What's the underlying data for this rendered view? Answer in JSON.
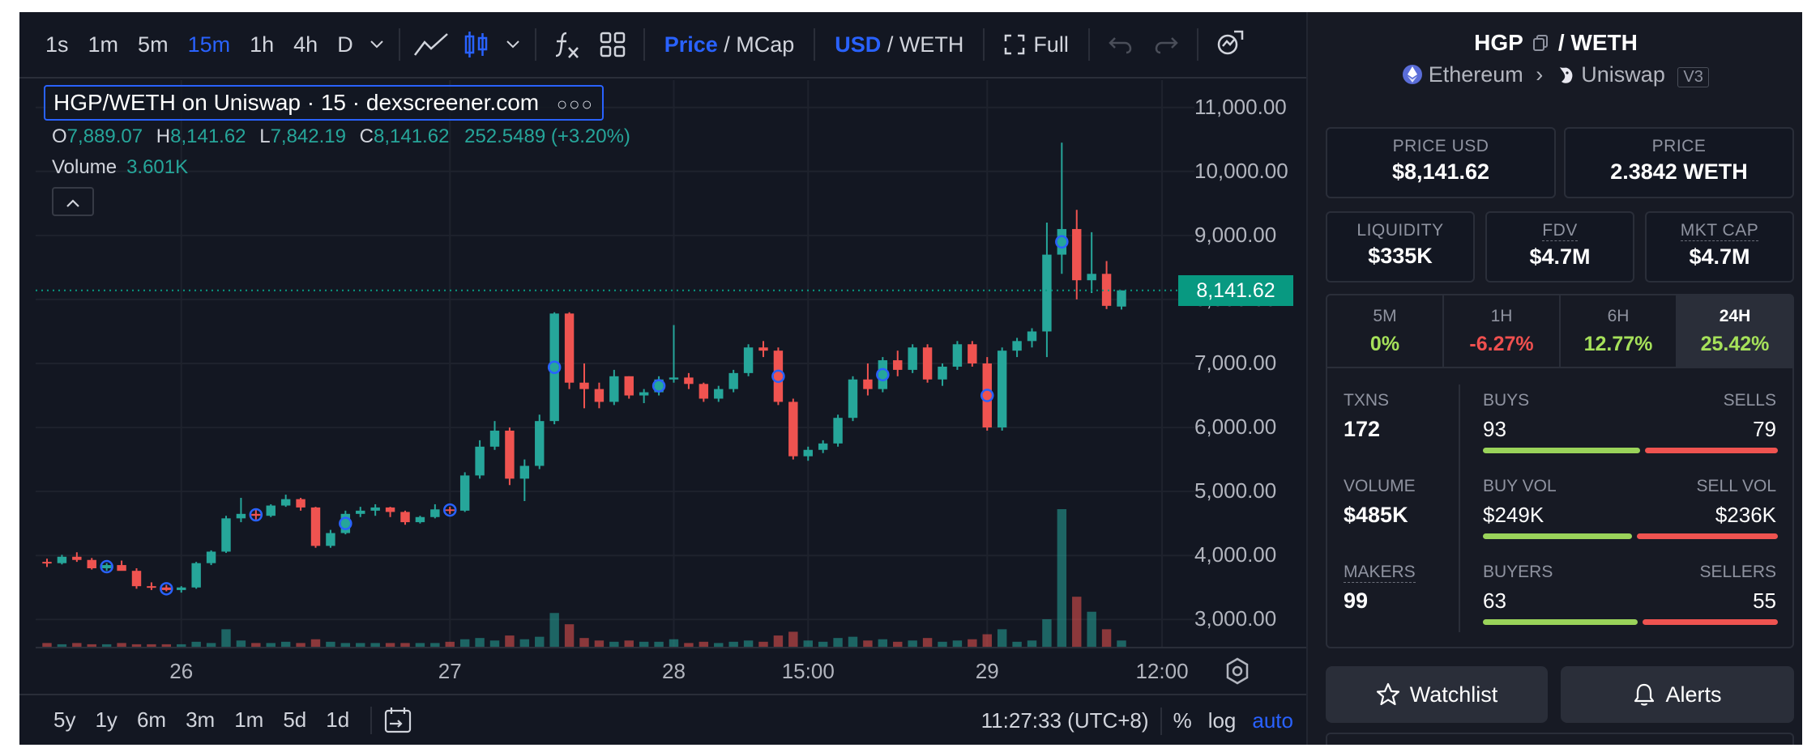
{
  "toolbar": {
    "intervals": [
      "1s",
      "1m",
      "5m",
      "15m",
      "1h",
      "4h",
      "D"
    ],
    "active_interval": "15m",
    "price_toggle": {
      "selected": "Price",
      "other": "MCap",
      "sep": " / "
    },
    "currency_toggle": {
      "selected": "USD",
      "other": "WETH",
      "sep": " / "
    },
    "fullscreen_label": "Full"
  },
  "chart_data": {
    "type": "candlestick",
    "title": "HGP/WETH on Uniswap · 15 · dexscreener.com",
    "ohlc": {
      "o_label": "O",
      "o": "7,889.07",
      "h_label": "H",
      "h": "8,141.62",
      "l_label": "L",
      "l": "7,842.19",
      "c_label": "C",
      "c": "8,141.62",
      "change": "252.5489 (+3.20%)"
    },
    "volume_label": "Volume",
    "volume_value": "3.601K",
    "y_ticks": [
      "11,000.00",
      "10,000.00",
      "9,000.00",
      "8,000.00",
      "7,000.00",
      "6,000.00",
      "5,000.00",
      "4,000.00",
      "3,000.00"
    ],
    "y_tick_values": [
      11000,
      10000,
      9000,
      8000,
      7000,
      6000,
      5000,
      4000,
      3000
    ],
    "ylim": [
      2700,
      11300
    ],
    "current_price": 8141.62,
    "current_price_label": "8,141.62",
    "x_ticks": [
      "26",
      "27",
      "28",
      "15:00",
      "29",
      "12:00"
    ],
    "candles": [
      [
        3900,
        3950,
        3820,
        3880
      ],
      [
        3880,
        4010,
        3860,
        3980
      ],
      [
        3980,
        4050,
        3900,
        3930
      ],
      [
        3930,
        3960,
        3780,
        3800
      ],
      [
        3800,
        3880,
        3760,
        3850
      ],
      [
        3850,
        3920,
        3800,
        3760
      ],
      [
        3760,
        3800,
        3480,
        3520
      ],
      [
        3520,
        3580,
        3460,
        3500
      ],
      [
        3500,
        3540,
        3440,
        3460
      ],
      [
        3460,
        3520,
        3420,
        3500
      ],
      [
        3500,
        3900,
        3480,
        3880
      ],
      [
        3880,
        4080,
        3850,
        4060
      ],
      [
        4060,
        4620,
        4040,
        4580
      ],
      [
        4580,
        4900,
        4520,
        4650
      ],
      [
        4650,
        4720,
        4560,
        4620
      ],
      [
        4620,
        4800,
        4600,
        4780
      ],
      [
        4780,
        4950,
        4760,
        4880
      ],
      [
        4880,
        4900,
        4700,
        4750
      ],
      [
        4750,
        4760,
        4120,
        4150
      ],
      [
        4150,
        4400,
        4120,
        4350
      ],
      [
        4350,
        4700,
        4330,
        4650
      ],
      [
        4650,
        4760,
        4600,
        4700
      ],
      [
        4700,
        4800,
        4620,
        4750
      ],
      [
        4750,
        4760,
        4600,
        4680
      ],
      [
        4680,
        4700,
        4480,
        4520
      ],
      [
        4520,
        4620,
        4500,
        4600
      ],
      [
        4600,
        4800,
        4580,
        4720
      ],
      [
        4720,
        4760,
        4650,
        4700
      ],
      [
        4700,
        5300,
        4680,
        5250
      ],
      [
        5250,
        5800,
        5200,
        5700
      ],
      [
        5700,
        6100,
        5650,
        5950
      ],
      [
        5950,
        6000,
        5100,
        5200
      ],
      [
        5200,
        5500,
        4850,
        5400
      ],
      [
        5400,
        6200,
        5350,
        6100
      ],
      [
        6100,
        7800,
        6050,
        7780
      ],
      [
        7780,
        7800,
        6600,
        6700
      ],
      [
        6700,
        7000,
        6300,
        6600
      ],
      [
        6600,
        6700,
        6300,
        6400
      ],
      [
        6400,
        6900,
        6350,
        6800
      ],
      [
        6800,
        6800,
        6450,
        6500
      ],
      [
        6500,
        6600,
        6380,
        6550
      ],
      [
        6550,
        6800,
        6500,
        6750
      ],
      [
        6750,
        7600,
        6700,
        6780
      ],
      [
        6780,
        6850,
        6600,
        6680
      ],
      [
        6680,
        6700,
        6400,
        6450
      ],
      [
        6450,
        6650,
        6400,
        6600
      ],
      [
        6600,
        6900,
        6550,
        6850
      ],
      [
        6850,
        7300,
        6800,
        7250
      ],
      [
        7250,
        7350,
        7100,
        7200
      ],
      [
        7200,
        7250,
        6350,
        6400
      ],
      [
        6400,
        6450,
        5500,
        5550
      ],
      [
        5550,
        5700,
        5480,
        5650
      ],
      [
        5650,
        5800,
        5600,
        5750
      ],
      [
        5750,
        6200,
        5700,
        6150
      ],
      [
        6150,
        6800,
        6100,
        6750
      ],
      [
        6750,
        7000,
        6500,
        6600
      ],
      [
        6600,
        7100,
        6550,
        7050
      ],
      [
        7050,
        7200,
        6800,
        6900
      ],
      [
        6900,
        7300,
        6850,
        7250
      ],
      [
        7250,
        7300,
        6700,
        6750
      ],
      [
        6750,
        7000,
        6650,
        6950
      ],
      [
        6950,
        7350,
        6900,
        7300
      ],
      [
        7300,
        7350,
        6950,
        7000
      ],
      [
        7000,
        7100,
        5950,
        6000
      ],
      [
        6000,
        7250,
        5950,
        7200
      ],
      [
        7200,
        7400,
        7100,
        7350
      ],
      [
        7350,
        7550,
        7250,
        7500
      ],
      [
        7500,
        9200,
        7100,
        8700
      ],
      [
        8700,
        10450,
        8400,
        9100
      ],
      [
        9100,
        9400,
        8000,
        8300
      ],
      [
        8300,
        9050,
        8100,
        8400
      ],
      [
        8400,
        8600,
        7850,
        7900
      ],
      [
        7889.07,
        8141.62,
        7842.19,
        8141.62
      ]
    ],
    "markers": [
      4,
      8,
      14,
      20,
      27,
      34,
      41,
      49,
      56,
      63,
      68
    ],
    "volumes": [
      3,
      2,
      3,
      2,
      2,
      3,
      2,
      2,
      2,
      2,
      4,
      3,
      14,
      5,
      3,
      3,
      4,
      3,
      6,
      4,
      3,
      3,
      3,
      3,
      3,
      3,
      3,
      4,
      6,
      7,
      5,
      9,
      6,
      8,
      27,
      18,
      7,
      5,
      4,
      5,
      4,
      4,
      6,
      3,
      4,
      3,
      4,
      5,
      4,
      9,
      12,
      5,
      4,
      7,
      8,
      5,
      6,
      4,
      5,
      7,
      4,
      5,
      6,
      10,
      14,
      4,
      5,
      22,
      110,
      40,
      28,
      14,
      5
    ],
    "colors": {
      "up": "#26a69a",
      "down": "#ef5350",
      "marker": "#2962ff"
    }
  },
  "bottom_bar": {
    "ranges": [
      "5y",
      "1y",
      "6m",
      "3m",
      "1m",
      "5d",
      "1d"
    ],
    "time": "11:27:33 (UTC+8)",
    "percent": "%",
    "log": "log",
    "auto": "auto"
  },
  "info": {
    "base": "HGP",
    "pair_rest": " / WETH",
    "chain": "Ethereum",
    "dex": "Uniswap",
    "dex_version": "V3",
    "price_usd_label": "PRICE USD",
    "price_usd": "$8,141.62",
    "price_label": "PRICE",
    "price_weth": "2.3842 WETH",
    "liquidity_label": "LIQUIDITY",
    "liquidity": "$335K",
    "fdv_label": "FDV",
    "fdv": "$4.7M",
    "mktcap_label": "MKT CAP",
    "mktcap": "$4.7M",
    "timeframes": [
      {
        "label": "5M",
        "value": "0%",
        "color": "#a6e15a"
      },
      {
        "label": "1H",
        "value": "-6.27%",
        "color": "#f0504f"
      },
      {
        "label": "6H",
        "value": "12.77%",
        "color": "#a6e15a"
      },
      {
        "label": "24H",
        "value": "25.42%",
        "color": "#a6e15a"
      }
    ],
    "txns_label": "TXNS",
    "txns": "172",
    "buys_label": "BUYS",
    "buys": "93",
    "sells_label": "SELLS",
    "sells": "79",
    "volume_label": "VOLUME",
    "volume": "$485K",
    "buy_vol_label": "BUY VOL",
    "buy_vol": "$249K",
    "sell_vol_label": "SELL VOL",
    "sell_vol": "$236K",
    "makers_label": "MAKERS",
    "makers": "99",
    "buyers_label": "BUYERS",
    "buyers": "63",
    "sellers_label": "SELLERS",
    "sellers": "55",
    "ratios": {
      "txns_buy": 0.541,
      "vol_buy": 0.513,
      "makers_buy": 0.534
    },
    "bar_colors": {
      "buy": "#9ad35a",
      "sell": "#ef5350"
    },
    "watchlist_label": "Watchlist",
    "alerts_label": "Alerts"
  }
}
